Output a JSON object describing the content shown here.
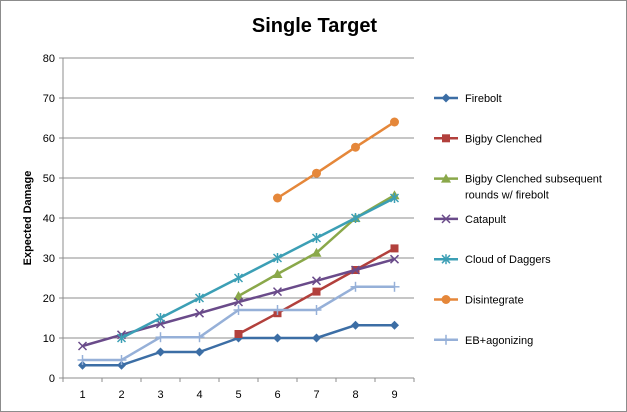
{
  "chart_data": {
    "type": "line",
    "title": "Single Target",
    "xlabel": "",
    "ylabel": "Expected Damage",
    "x": [
      1,
      2,
      3,
      4,
      5,
      6,
      7,
      8,
      9
    ],
    "ylim": [
      0,
      80
    ],
    "yticks": [
      0,
      10,
      20,
      30,
      40,
      50,
      60,
      70,
      80
    ],
    "grid": "horizontal",
    "legend_position": "right",
    "series": [
      {
        "name": "Firebolt",
        "color": "#3c6ea5",
        "marker": "diamond",
        "values": [
          3.2,
          3.2,
          6.5,
          6.5,
          10,
          10,
          10,
          13.2,
          13.2
        ]
      },
      {
        "name": "Bigby Clenched",
        "color": "#b2403c",
        "marker": "square",
        "values": [
          null,
          null,
          null,
          null,
          11,
          16.2,
          21.6,
          27,
          32.4
        ]
      },
      {
        "name": "Bigby Clenched subsequent rounds w/ firebolt",
        "color": "#8aa84a",
        "marker": "triangle",
        "values": [
          null,
          null,
          null,
          null,
          20.5,
          26,
          31.3,
          40,
          45.7
        ]
      },
      {
        "name": "Catapult",
        "color": "#6a4b8a",
        "marker": "x",
        "values": [
          8,
          10.8,
          13.5,
          16.2,
          19,
          21.6,
          24.3,
          27,
          29.7
        ]
      },
      {
        "name": "Cloud of Daggers",
        "color": "#3c9fb5",
        "marker": "asterisk",
        "values": [
          null,
          10,
          15,
          20,
          25,
          30,
          35,
          40,
          45
        ]
      },
      {
        "name": "Disintegrate",
        "color": "#e5873a",
        "marker": "circle",
        "values": [
          null,
          null,
          null,
          null,
          null,
          45,
          51.2,
          57.7,
          64
        ]
      },
      {
        "name": "EB+agonizing",
        "color": "#96b0d8",
        "marker": "plus",
        "values": [
          4.5,
          4.5,
          10.2,
          10.2,
          17,
          17,
          17,
          22.8,
          22.8
        ]
      }
    ]
  }
}
